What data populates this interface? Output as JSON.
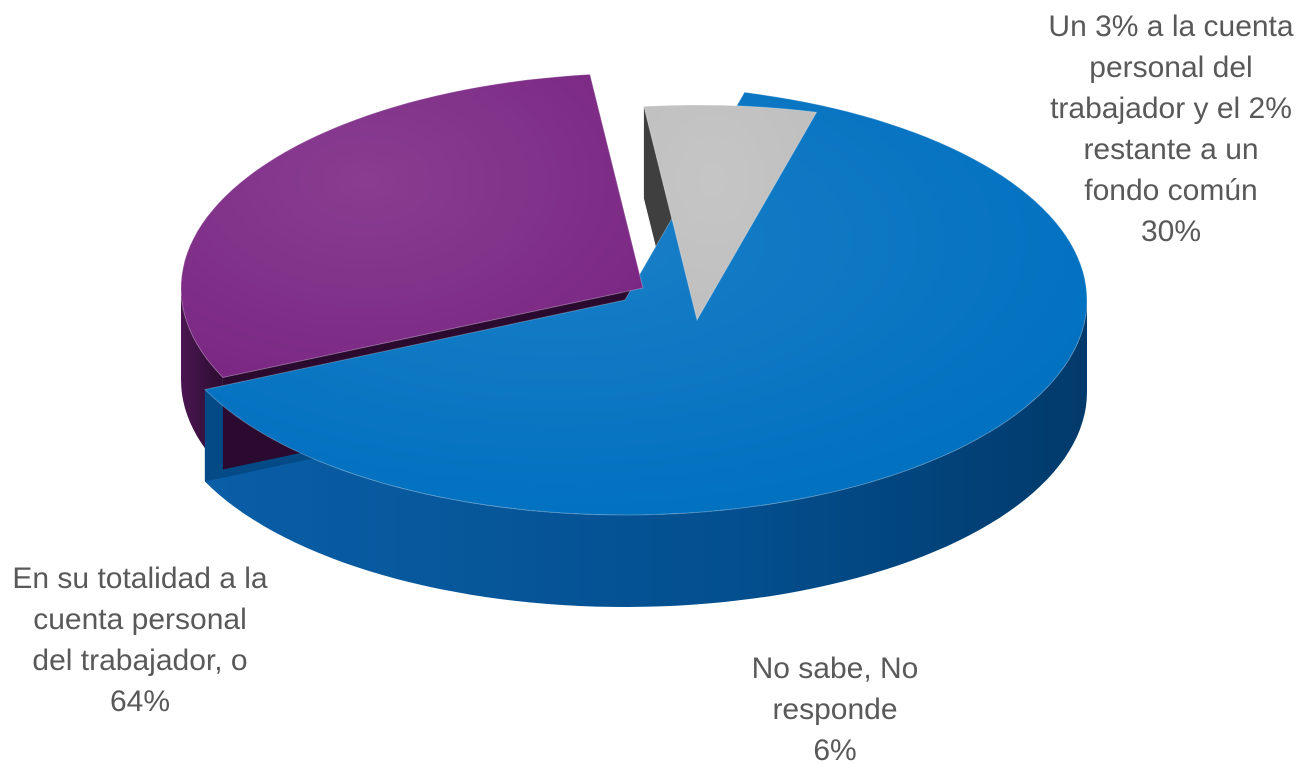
{
  "chart_data": {
    "type": "pie",
    "title": "",
    "slices": [
      {
        "label": "En su totalidad a la cuenta personal del trabajador, o",
        "label_lines": [
          "En su totalidad a la",
          "cuenta personal",
          "del trabajador, o"
        ],
        "percent_label": "64%",
        "value": 64,
        "color": "#0070C0"
      },
      {
        "label": "Un 3% a la cuenta personal del trabajador y el 2% restante a un fondo común",
        "label_lines": [
          "Un 3% a la cuenta",
          "personal del",
          "trabajador y el 2%",
          "restante a un",
          "fondo común"
        ],
        "percent_label": "30%",
        "value": 30,
        "color": "#7B2884"
      },
      {
        "label": "No sabe, No responde",
        "label_lines": [
          "No sabe, No",
          "responde"
        ],
        "percent_label": "6%",
        "value": 6,
        "color": "#BFBFBF"
      }
    ],
    "style": "3d-exploded",
    "legend": "none"
  }
}
